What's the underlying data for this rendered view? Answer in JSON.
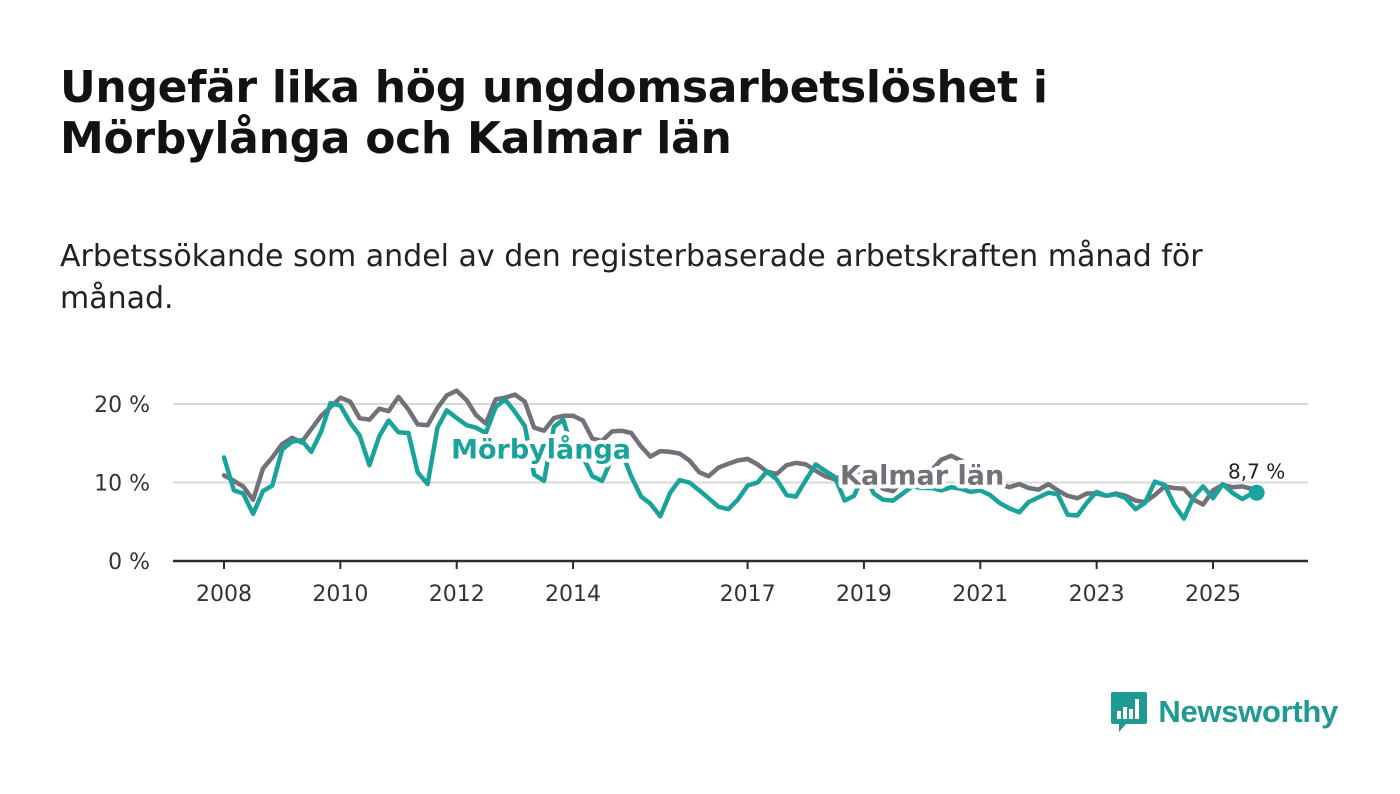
{
  "header": {
    "title": "Ungefär lika hög ungdomsarbetslöshet i Mörbylånga och Kalmar län",
    "subtitle": "Arbetssökande som andel av den registerbaserade arbetskraften månad för månad."
  },
  "brand": {
    "name": "Newsworthy",
    "icon": "newsworthy-bar-chart-icon",
    "color": "#1f9a91"
  },
  "chart_data": {
    "type": "line",
    "title": "Ungefär lika hög ungdomsarbetslöshet i Mörbylånga och Kalmar län",
    "subtitle": "Arbetssökande som andel av den registerbaserade arbetskraften månad för månad.",
    "xlabel": "",
    "ylabel": "",
    "x_unit": "year",
    "xlim": [
      2007.75,
      2027.3
    ],
    "ylim": [
      0,
      20
    ],
    "yticks": [
      0,
      10,
      20
    ],
    "ytick_labels": [
      "0 %",
      "10 %",
      "20 %"
    ],
    "xticks": [
      2008,
      2010,
      2012,
      2014,
      2017,
      2019,
      2021,
      2023,
      2025
    ],
    "xtick_labels": [
      "2008",
      "2010",
      "2012",
      "2014",
      "2017",
      "2019",
      "2021",
      "2023",
      "2025"
    ],
    "grid": true,
    "legend": "inline labels on lines",
    "series": [
      {
        "name": "Kalmar län",
        "color": "#727079",
        "x": [
          2008.0,
          2008.17,
          2008.33,
          2008.5,
          2008.67,
          2008.83,
          2009.0,
          2009.17,
          2009.33,
          2009.5,
          2009.67,
          2009.83,
          2010.0,
          2010.17,
          2010.33,
          2010.5,
          2010.67,
          2010.83,
          2011.0,
          2011.17,
          2011.33,
          2011.5,
          2011.67,
          2011.83,
          2012.0,
          2012.17,
          2012.33,
          2012.5,
          2012.67,
          2012.83,
          2013.0,
          2013.17,
          2013.33,
          2013.5,
          2013.67,
          2013.83,
          2014.0,
          2014.17,
          2014.33,
          2014.5,
          2014.67,
          2014.83,
          2015.0,
          2015.17,
          2015.33,
          2015.5,
          2015.67,
          2015.83,
          2016.0,
          2016.17,
          2016.33,
          2016.5,
          2016.67,
          2016.83,
          2017.0,
          2017.17,
          2017.33,
          2017.5,
          2017.67,
          2017.83,
          2018.0,
          2018.17,
          2018.33,
          2018.5,
          2018.67,
          2018.83,
          2019.0,
          2019.17,
          2019.33,
          2019.5,
          2019.67,
          2019.83,
          2020.0,
          2020.17,
          2020.33,
          2020.5,
          2020.67,
          2020.83,
          2021.0,
          2021.17,
          2021.33,
          2021.5,
          2021.67,
          2021.83,
          2022.0,
          2022.17,
          2022.33,
          2022.5,
          2022.67,
          2022.83,
          2023.0,
          2023.17,
          2023.33,
          2023.5,
          2023.67,
          2023.83,
          2024.0,
          2024.17,
          2024.33,
          2024.5,
          2024.67,
          2024.83,
          2025.0,
          2025.17,
          2025.33,
          2025.5,
          2025.67,
          2025.75
        ],
        "values": [
          10.9,
          10.2,
          9.5,
          7.8,
          11.8,
          13.2,
          14.9,
          15.7,
          15.1,
          16.8,
          18.5,
          19.6,
          20.8,
          20.3,
          18.2,
          18.0,
          19.4,
          19.1,
          20.9,
          19.3,
          17.4,
          17.3,
          19.5,
          21.1,
          21.7,
          20.5,
          18.6,
          17.5,
          20.6,
          20.8,
          21.2,
          20.3,
          17.0,
          16.6,
          18.2,
          18.5,
          18.5,
          17.9,
          15.6,
          15.3,
          16.5,
          16.6,
          16.3,
          14.6,
          13.3,
          14.0,
          13.9,
          13.7,
          12.8,
          11.3,
          10.8,
          11.9,
          12.4,
          12.8,
          13.0,
          12.3,
          11.4,
          11.1,
          12.2,
          12.5,
          12.3,
          11.5,
          10.8,
          10.4,
          11.1,
          11.6,
          11.1,
          10.7,
          9.2,
          8.9,
          10.3,
          11.1,
          11.0,
          11.6,
          12.9,
          13.4,
          12.8,
          11.8,
          11.0,
          10.1,
          9.8,
          9.4,
          9.8,
          9.3,
          9.1,
          9.8,
          9.0,
          8.3,
          8.0,
          8.6,
          8.6,
          8.3,
          8.6,
          8.3,
          7.7,
          7.5,
          8.4,
          9.5,
          9.3,
          9.2,
          7.8,
          7.2,
          9.0,
          9.7,
          9.4,
          9.5,
          9.2,
          9.0
        ]
      },
      {
        "name": "Mörbylånga",
        "color": "#1aa39a",
        "x": [
          2008.0,
          2008.17,
          2008.33,
          2008.5,
          2008.67,
          2008.83,
          2009.0,
          2009.17,
          2009.33,
          2009.5,
          2009.67,
          2009.83,
          2010.0,
          2010.17,
          2010.33,
          2010.5,
          2010.67,
          2010.83,
          2011.0,
          2011.17,
          2011.33,
          2011.5,
          2011.67,
          2011.83,
          2012.0,
          2012.17,
          2012.33,
          2012.5,
          2012.67,
          2012.83,
          2013.0,
          2013.17,
          2013.33,
          2013.5,
          2013.67,
          2013.83,
          2014.0,
          2014.17,
          2014.33,
          2014.5,
          2014.67,
          2014.83,
          2015.0,
          2015.17,
          2015.33,
          2015.5,
          2015.67,
          2015.83,
          2016.0,
          2016.17,
          2016.33,
          2016.5,
          2016.67,
          2016.83,
          2017.0,
          2017.17,
          2017.33,
          2017.5,
          2017.67,
          2017.83,
          2018.0,
          2018.17,
          2018.33,
          2018.5,
          2018.67,
          2018.83,
          2019.0,
          2019.17,
          2019.33,
          2019.5,
          2019.67,
          2019.83,
          2020.0,
          2020.17,
          2020.33,
          2020.5,
          2020.67,
          2020.83,
          2021.0,
          2021.17,
          2021.33,
          2021.5,
          2021.67,
          2021.83,
          2022.0,
          2022.17,
          2022.33,
          2022.5,
          2022.67,
          2022.83,
          2023.0,
          2023.17,
          2023.33,
          2023.5,
          2023.67,
          2023.83,
          2024.0,
          2024.17,
          2024.33,
          2024.5,
          2024.67,
          2024.83,
          2025.0,
          2025.17,
          2025.33,
          2025.5,
          2025.67,
          2025.75
        ],
        "values": [
          13.2,
          9.0,
          8.6,
          6.0,
          8.9,
          9.6,
          14.2,
          15.2,
          15.4,
          13.9,
          16.5,
          20.1,
          19.8,
          17.6,
          16.0,
          12.2,
          15.9,
          17.9,
          16.4,
          16.3,
          11.3,
          9.8,
          17.0,
          19.2,
          18.2,
          17.3,
          17.0,
          16.3,
          19.6,
          20.6,
          19.0,
          17.2,
          11.0,
          10.2,
          17.1,
          18.0,
          14.0,
          13.3,
          10.8,
          10.2,
          13.1,
          14.0,
          10.8,
          8.2,
          7.3,
          5.7,
          8.7,
          10.3,
          10.0,
          9.0,
          8.0,
          6.9,
          6.6,
          7.8,
          9.6,
          10.0,
          11.4,
          10.4,
          8.4,
          8.2,
          10.3,
          12.3,
          11.5,
          10.7,
          7.7,
          8.3,
          11.2,
          8.6,
          7.8,
          7.7,
          8.6,
          9.5,
          9.3,
          9.3,
          9.0,
          9.4,
          9.2,
          8.8,
          9.0,
          8.4,
          7.4,
          6.7,
          6.2,
          7.5,
          8.1,
          8.7,
          8.5,
          5.9,
          5.8,
          7.4,
          8.8,
          8.3,
          8.5,
          8.0,
          6.6,
          7.4,
          10.1,
          9.7,
          7.2,
          5.4,
          8.2,
          9.5,
          8.0,
          9.8,
          8.7,
          7.9,
          8.6,
          8.7
        ]
      }
    ],
    "annotations": [
      {
        "text": "Mörbylånga",
        "series": "Mörbylånga",
        "at_x": 2013.45,
        "at_y": 14.3
      },
      {
        "text": "Kalmar län",
        "series": "Kalmar län",
        "at_x": 2020.0,
        "at_y": 11.0
      },
      {
        "text": "8,7 %",
        "series": "Mörbylånga",
        "at_x": 2025.75,
        "at_y": 8.7,
        "marker": true
      }
    ]
  }
}
